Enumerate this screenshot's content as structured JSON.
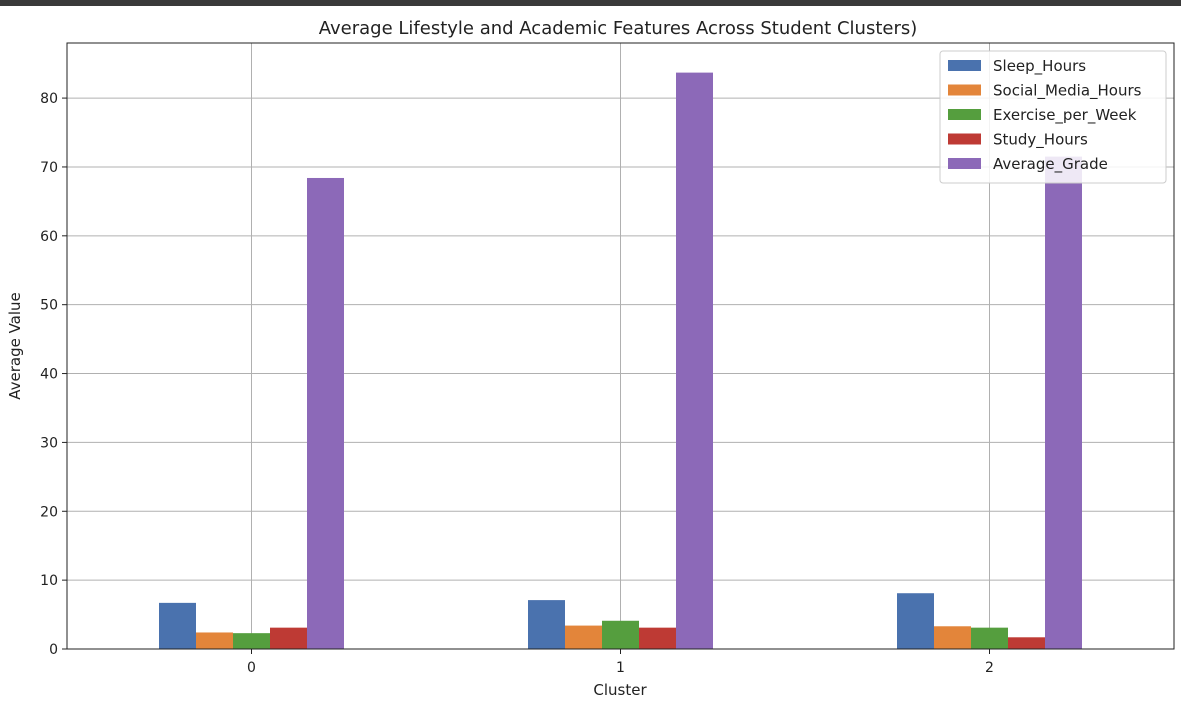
{
  "chart_data": {
    "type": "bar",
    "title": "Average Lifestyle and Academic Features Across Student Clusters)",
    "xlabel": "Cluster",
    "ylabel": "Average Value",
    "categories": [
      "0",
      "1",
      "2"
    ],
    "ylim": [
      0,
      88
    ],
    "yticks": [
      0,
      10,
      20,
      30,
      40,
      50,
      60,
      70,
      80
    ],
    "grid": true,
    "legend_position": "top-right",
    "series": [
      {
        "name": "Sleep_Hours",
        "color": "#4a72ae",
        "values": [
          6.7,
          7.1,
          8.1
        ]
      },
      {
        "name": "Social_Media_Hours",
        "color": "#e3853a",
        "values": [
          2.4,
          3.4,
          3.3
        ]
      },
      {
        "name": "Exercise_per_Week",
        "color": "#559e3e",
        "values": [
          2.3,
          4.1,
          3.1
        ]
      },
      {
        "name": "Study_Hours",
        "color": "#be3a34",
        "values": [
          3.1,
          3.1,
          1.7
        ]
      },
      {
        "name": "Average_Grade",
        "color": "#8c69b8",
        "values": [
          68.4,
          83.7,
          71.5
        ]
      }
    ]
  }
}
